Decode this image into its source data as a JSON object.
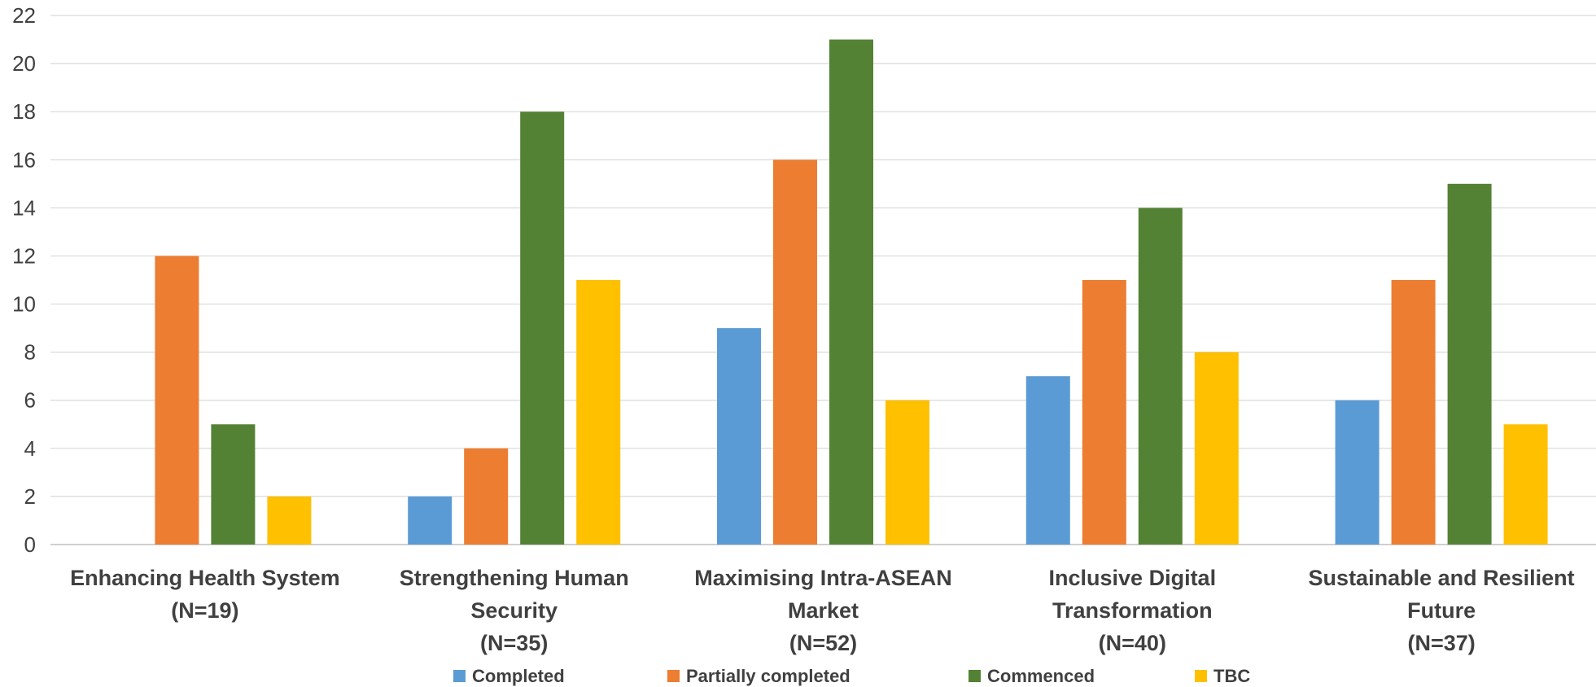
{
  "chart_data": {
    "type": "bar",
    "categories": [
      [
        "Enhancing Health System",
        "(N=19)"
      ],
      [
        "Strengthening Human",
        "Security",
        "(N=35)"
      ],
      [
        "Maximising Intra-ASEAN",
        "Market",
        "(N=52)"
      ],
      [
        "Inclusive Digital",
        "Transformation",
        "(N=40)"
      ],
      [
        "Sustainable and Resilient",
        "Future",
        "(N=37)"
      ]
    ],
    "series": [
      {
        "name": "Completed",
        "color": "#5B9BD5",
        "values": [
          0,
          2,
          9,
          7,
          6
        ]
      },
      {
        "name": "Partially  completed",
        "color": "#ED7D31",
        "values": [
          12,
          4,
          16,
          11,
          11
        ]
      },
      {
        "name": "Commenced",
        "color": "#548235",
        "values": [
          5,
          18,
          21,
          14,
          15
        ]
      },
      {
        "name": "TBC",
        "color": "#FFC000",
        "values": [
          2,
          11,
          6,
          8,
          5
        ]
      }
    ],
    "yticks": [
      0,
      2,
      4,
      6,
      8,
      10,
      12,
      14,
      16,
      18,
      20,
      22
    ],
    "ylim": [
      0,
      22
    ],
    "grid": true,
    "legend": "bottom"
  }
}
